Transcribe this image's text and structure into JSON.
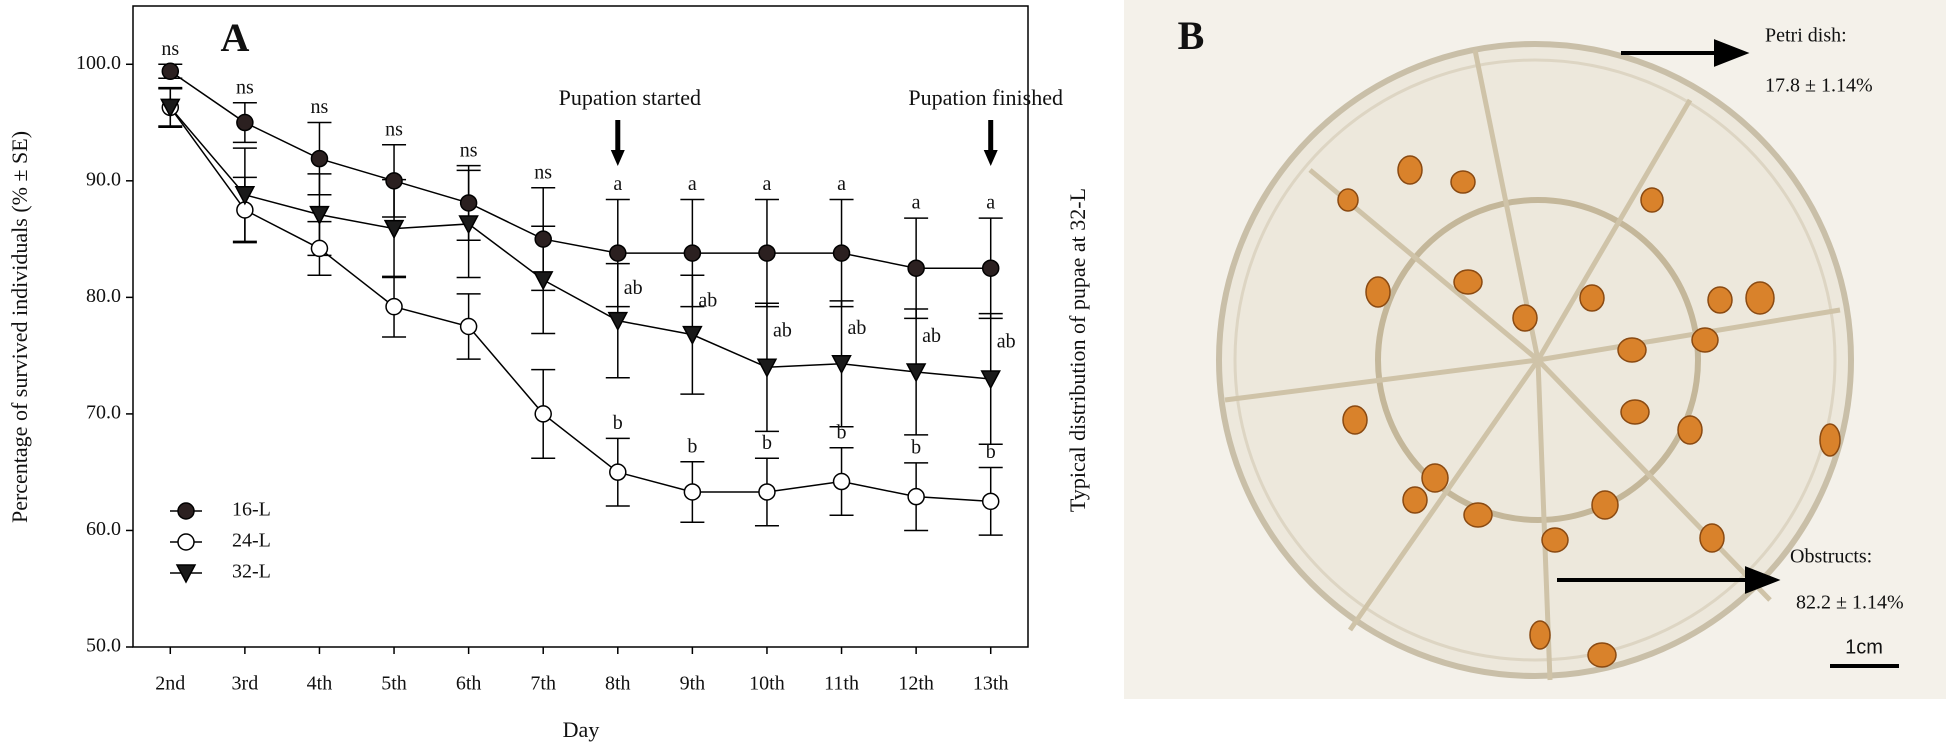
{
  "chart_data": {
    "type": "line",
    "panel_label": "A",
    "x_label": "Day",
    "y_label": "Percentage of survived individuals (% ± SE)",
    "categories": [
      "2nd",
      "3rd",
      "4th",
      "5th",
      "6th",
      "7th",
      "8th",
      "9th",
      "10th",
      "11th",
      "12th",
      "13th"
    ],
    "ylim": [
      50,
      105
    ],
    "yticks": [
      {
        "value": 50,
        "label": "50.0"
      },
      {
        "value": 60,
        "label": "60.0"
      },
      {
        "value": 70,
        "label": "70.0"
      },
      {
        "value": 80,
        "label": "80.0"
      },
      {
        "value": 90,
        "label": "90.0"
      },
      {
        "value": 100,
        "label": "100.0"
      }
    ],
    "legend": "bottom-left",
    "series": [
      {
        "name": "16-L",
        "color": "#2b2020",
        "marker": "circle",
        "values": [
          99.4,
          95.0,
          91.9,
          90.0,
          88.1,
          85.0,
          83.8,
          83.8,
          83.8,
          83.8,
          82.5,
          82.5
        ],
        "errors": [
          0.6,
          1.7,
          3.1,
          3.1,
          3.2,
          4.4,
          4.6,
          4.6,
          4.6,
          4.6,
          4.3,
          4.3
        ],
        "significance": [
          "ns",
          "ns",
          "ns",
          "ns",
          "ns",
          "ns",
          "a",
          "a",
          "a",
          "a",
          "a",
          "a"
        ]
      },
      {
        "name": "24-L",
        "color": "#ffffff",
        "marker": "circle",
        "values": [
          96.3,
          87.5,
          84.2,
          79.2,
          77.5,
          70.0,
          65.0,
          63.3,
          63.3,
          64.2,
          62.9,
          62.5
        ],
        "errors": [
          1.6,
          2.8,
          2.3,
          2.6,
          2.8,
          3.8,
          2.9,
          2.6,
          2.9,
          2.9,
          2.9,
          2.9
        ],
        "significance": [
          null,
          null,
          null,
          null,
          null,
          null,
          "b",
          "b",
          "b",
          "b",
          "b",
          "b"
        ]
      },
      {
        "name": "32-L",
        "color": "#1a1a1a",
        "marker": "triangle-down",
        "values": [
          96.3,
          88.8,
          87.1,
          85.9,
          86.3,
          81.5,
          78.0,
          76.8,
          74.0,
          74.3,
          73.6,
          73.0
        ],
        "errors": [
          1.7,
          4.0,
          3.5,
          4.2,
          4.6,
          4.6,
          4.9,
          5.1,
          5.5,
          5.4,
          5.4,
          5.6
        ],
        "significance": [
          null,
          null,
          null,
          null,
          null,
          null,
          "ab",
          "ab",
          "ab",
          "ab",
          "ab",
          "ab"
        ]
      }
    ],
    "annotations": [
      {
        "text": "Pupation started",
        "x": "8th"
      },
      {
        "text": "Pupation finished",
        "x": "13th"
      }
    ]
  },
  "panel_b": {
    "panel_label": "B",
    "y_label": "Typical distribution of pupae at 32-L",
    "petri_label": "Petri dish:",
    "petri_value": "17.8 ± 1.14%",
    "obstructs_label": "Obstructs:",
    "obstructs_value": "82.2 ± 1.14%",
    "scale_bar": "1cm"
  }
}
